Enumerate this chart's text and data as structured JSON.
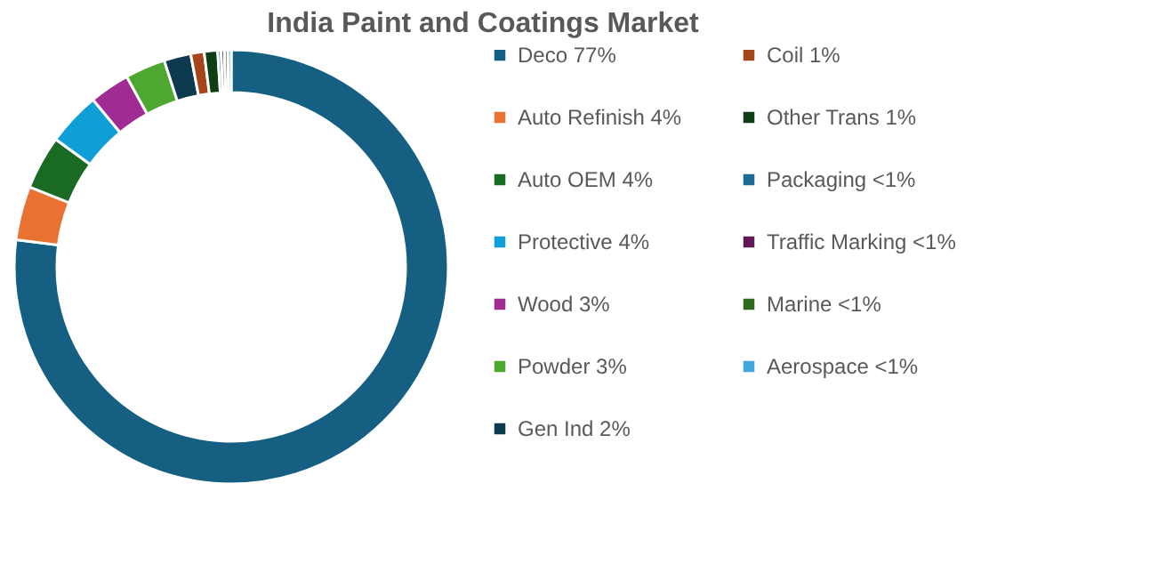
{
  "chart_data": {
    "type": "donut",
    "title": "India Paint and Coatings Market",
    "categories": [
      "Deco 77%",
      "Auto Refinish 4%",
      "Auto OEM 4%",
      "Protective 4%",
      "Wood 3%",
      "Powder 3%",
      "Gen Ind 2%",
      "Coil 1%",
      "Other Trans 1%",
      "Packaging <1%",
      "Traffic Marking <1%",
      "Marine <1%",
      "Aerospace <1%"
    ],
    "values": [
      77,
      4,
      4,
      4,
      3,
      3,
      2,
      1,
      1,
      0.25,
      0.25,
      0.25,
      0.25
    ],
    "colors": [
      "#156082",
      "#e97132",
      "#196b24",
      "#0f9ed5",
      "#a02b93",
      "#4ea72e",
      "#0d3a4f",
      "#a5461a",
      "#0f3d14",
      "#1a6a93",
      "#5e1a57",
      "#2f6a1b",
      "#3fa9dc"
    ],
    "legend": "right"
  }
}
